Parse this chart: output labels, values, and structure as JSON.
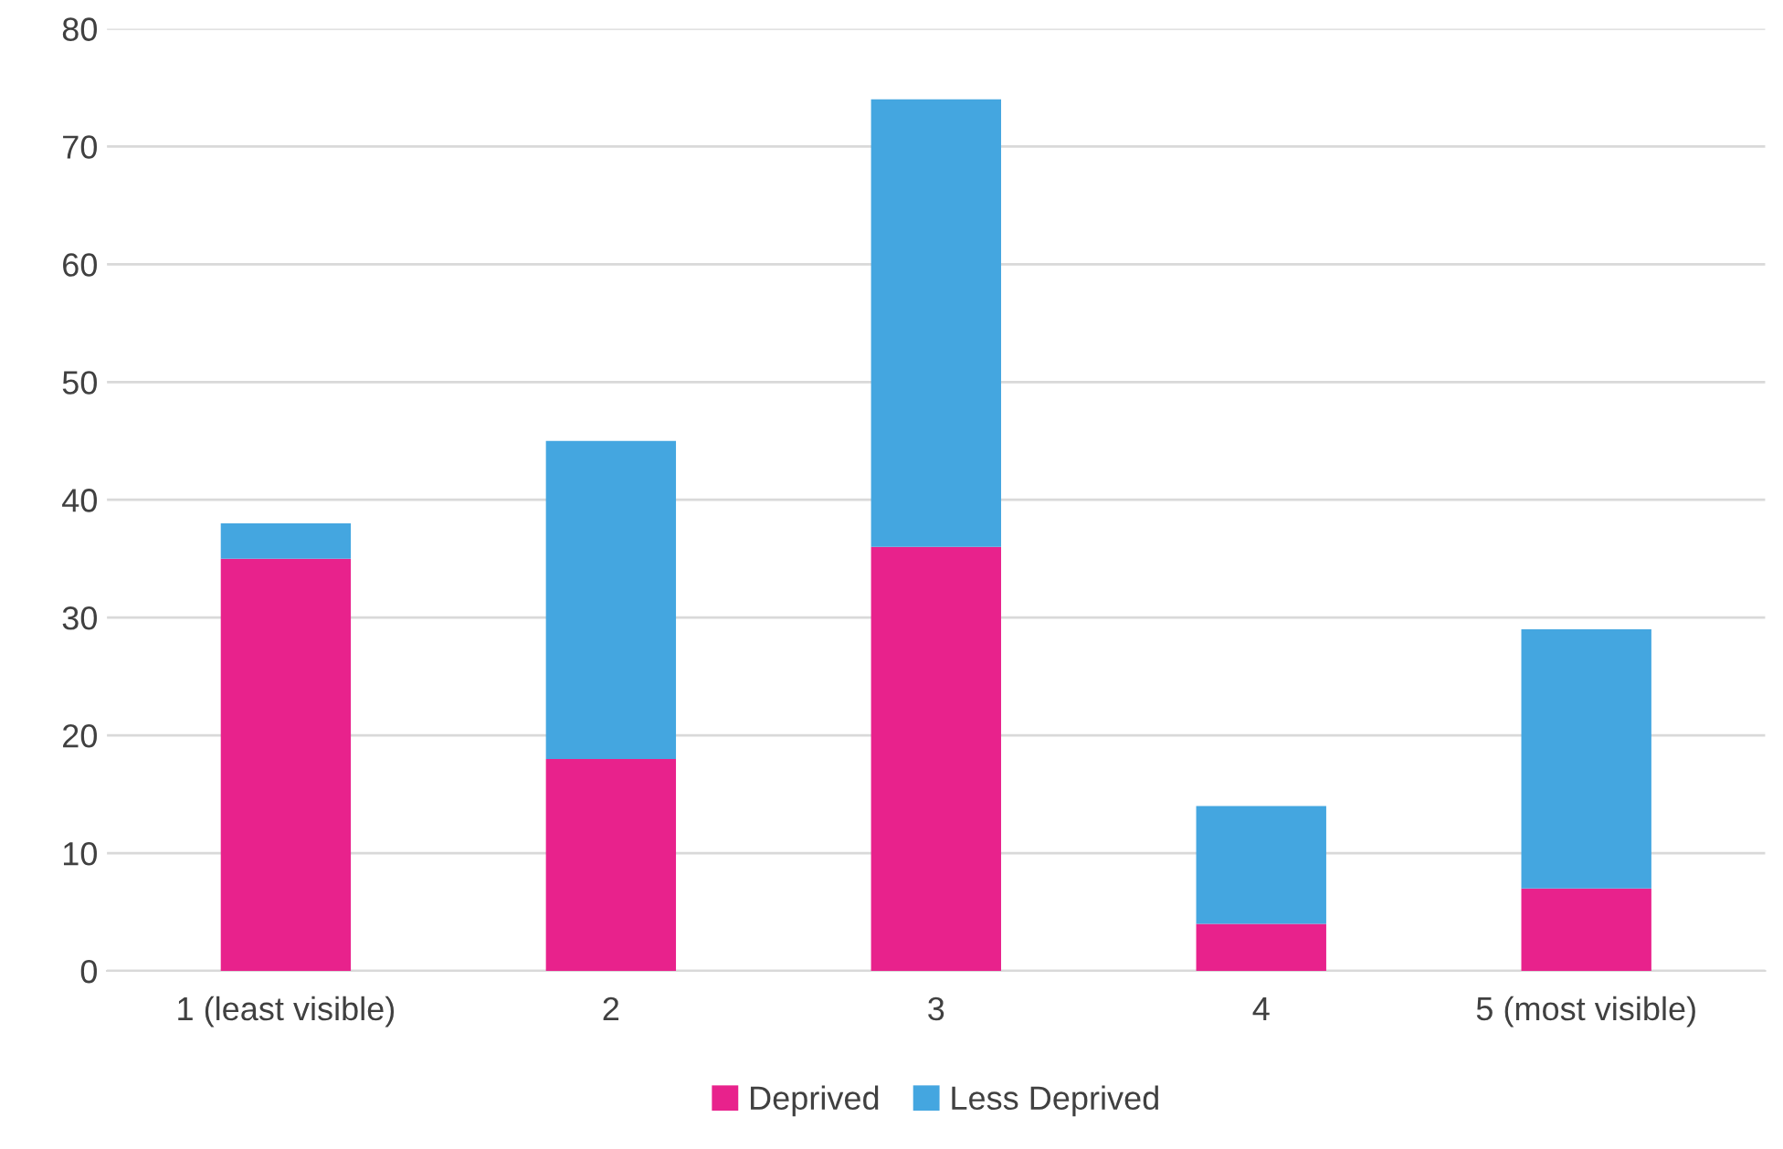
{
  "chart_data": {
    "type": "bar",
    "stacked": true,
    "categories": [
      "1 (least visible)",
      "2",
      "3",
      "4",
      "5 (most visible)"
    ],
    "series": [
      {
        "name": "Deprived",
        "color": "#e8228c",
        "values": [
          35,
          18,
          36,
          4,
          7
        ]
      },
      {
        "name": "Less Deprived",
        "color": "#44a6e0",
        "values": [
          3,
          27,
          38,
          10,
          22
        ]
      }
    ],
    "ylim": [
      0,
      80
    ],
    "yticks": [
      0,
      10,
      20,
      30,
      40,
      50,
      60,
      70,
      80
    ],
    "grid": "y",
    "legend": "bottom"
  }
}
